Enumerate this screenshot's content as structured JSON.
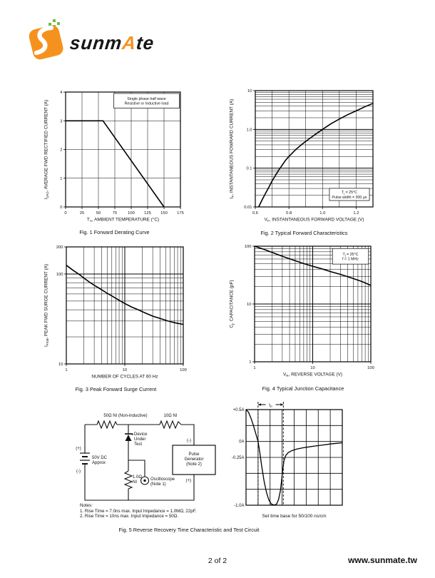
{
  "page": {
    "footer_page": "2 of 2",
    "footer_url": "www.sunmate.tw"
  },
  "logo": {
    "brand_pre": "sunm",
    "brand_accent": "A",
    "brand_post": "te"
  },
  "chart_data": [
    {
      "id": "fig1",
      "type": "line",
      "title": "Fig. 1  Forward Derating Curve",
      "xlabel": "T~A~, AMBIENT TEMPERATURE (°C)",
      "ylabel": "I~(AV)~, AVERAGE FWD RECTIFIED CURRENT (A)",
      "xscale": "linear",
      "xlim": [
        0,
        175
      ],
      "xticks": [
        [
          0,
          "0"
        ],
        [
          25,
          "25"
        ],
        [
          50,
          "50"
        ],
        [
          75,
          "75"
        ],
        [
          100,
          "100"
        ],
        [
          125,
          "125"
        ],
        [
          150,
          "150"
        ],
        [
          175,
          "175"
        ]
      ],
      "yscale": "linear",
      "ylim": [
        0,
        4
      ],
      "yticks": [
        [
          0,
          "0"
        ],
        [
          1,
          "1"
        ],
        [
          2,
          "2"
        ],
        [
          3,
          "3"
        ],
        [
          4,
          "4"
        ]
      ],
      "annotation": {
        "lines": [
          "Single phase half wave",
          "Resistive or Inductive load"
        ],
        "x0": 0.42,
        "y0": 0.012,
        "x1": 0.99,
        "y1": 0.14
      },
      "series": [
        {
          "name": "derating-curve",
          "points": [
            [
              0,
              3
            ],
            [
              57,
              3
            ],
            [
              150,
              0
            ]
          ]
        }
      ]
    },
    {
      "id": "fig2",
      "type": "line",
      "title": "Fig. 2  Typical Forward Characteristics",
      "xlabel": "V~F~, INSTANTANEOUS FORWARD VOLTAGE (V)",
      "ylabel": "I~F~, INSTANTANEOUS FOWRARD CURRENT (A)",
      "xscale": "linear",
      "xlim": [
        0.6,
        1.3
      ],
      "xticks": [
        [
          0.6,
          "0.6"
        ],
        [
          0.8,
          "0.8"
        ],
        [
          1.0,
          "1.0"
        ],
        [
          1.2,
          "1.2"
        ]
      ],
      "xgrid": [
        0.7,
        0.8,
        0.9,
        1.0,
        1.1,
        1.2
      ],
      "yscale": "log",
      "ylim": [
        0.01,
        10
      ],
      "yticks": [
        [
          0.01,
          "0.01"
        ],
        [
          0.1,
          "0.1"
        ],
        [
          1,
          "1.0"
        ],
        [
          10,
          "10"
        ]
      ],
      "annotation": {
        "lines": [
          "T~j~ = 25°C",
          "Pulse width = 300 μs"
        ],
        "x0": 0.63,
        "y0": 0.84,
        "x1": 0.97,
        "y1": 0.945
      },
      "series": [
        {
          "name": "forward-characteristic",
          "points": [
            [
              0.62,
              0.01
            ],
            [
              0.64,
              0.015
            ],
            [
              0.66,
              0.022
            ],
            [
              0.68,
              0.032
            ],
            [
              0.7,
              0.047
            ],
            [
              0.72,
              0.065
            ],
            [
              0.74,
              0.09
            ],
            [
              0.76,
              0.12
            ],
            [
              0.78,
              0.16
            ],
            [
              0.8,
              0.2
            ],
            [
              0.84,
              0.3
            ],
            [
              0.88,
              0.42
            ],
            [
              0.92,
              0.57
            ],
            [
              0.96,
              0.76
            ],
            [
              1.0,
              1.0
            ],
            [
              1.05,
              1.4
            ],
            [
              1.1,
              1.85
            ],
            [
              1.15,
              2.4
            ],
            [
              1.2,
              3.0
            ],
            [
              1.25,
              3.8
            ],
            [
              1.3,
              4.7
            ]
          ]
        }
      ]
    },
    {
      "id": "fig3",
      "type": "line",
      "title": "Fig. 3  Peak Forward Surge Current",
      "xlabel": "NUMBER OF CYCLES AT 60 Hz",
      "ylabel": "I~FSM~, PEAK FWD SURGE CURRENT (A)",
      "xscale": "log",
      "xlim": [
        1,
        100
      ],
      "xticks": [
        [
          1,
          "1"
        ],
        [
          10,
          "10"
        ],
        [
          100,
          "100"
        ]
      ],
      "yscale": "log",
      "ylim": [
        10,
        200
      ],
      "yticks": [
        [
          10,
          "10"
        ],
        [
          100,
          "100"
        ],
        [
          200,
          "200"
        ]
      ],
      "series": [
        {
          "name": "surge-current",
          "points": [
            [
              1,
              125
            ],
            [
              1.3,
              110
            ],
            [
              1.7,
              98
            ],
            [
              2,
              90
            ],
            [
              2.5,
              81
            ],
            [
              3,
              75
            ],
            [
              4,
              67
            ],
            [
              5,
              61
            ],
            [
              6,
              57
            ],
            [
              8,
              51
            ],
            [
              10,
              47
            ],
            [
              13,
              43
            ],
            [
              17,
              40
            ],
            [
              22,
              37
            ],
            [
              30,
              34
            ],
            [
              40,
              32
            ],
            [
              55,
              30
            ],
            [
              75,
              28.5
            ],
            [
              100,
              27.5
            ]
          ]
        }
      ]
    },
    {
      "id": "fig4",
      "type": "line",
      "title": "Fig. 4  Typical Junction Capacitance",
      "xlabel": "V~R~, REVERSE VOLTAGE (V)",
      "ylabel": "C~j~, CAPACITANCE (pF)",
      "xscale": "log",
      "xlim": [
        1,
        100
      ],
      "xticks": [
        [
          1,
          "1"
        ],
        [
          10,
          "10"
        ],
        [
          100,
          "100"
        ]
      ],
      "yscale": "log",
      "ylim": [
        1,
        100
      ],
      "yticks": [
        [
          1,
          "1"
        ],
        [
          10,
          "10"
        ],
        [
          100,
          "100"
        ]
      ],
      "annotation": {
        "lines": [
          "T~j~ = 25°C",
          "f = 1 MHz"
        ],
        "x0": 0.67,
        "y0": 0.02,
        "x1": 0.98,
        "y1": 0.155
      },
      "series": [
        {
          "name": "junction-capacitance",
          "points": [
            [
              1,
              100
            ],
            [
              1.5,
              87
            ],
            [
              2,
              78
            ],
            [
              3,
              67
            ],
            [
              5,
              56
            ],
            [
              7,
              50
            ],
            [
              10,
              45
            ],
            [
              15,
              40
            ],
            [
              20,
              36.5
            ],
            [
              30,
              32.5
            ],
            [
              50,
              27.5
            ],
            [
              70,
              24.5
            ],
            [
              100,
              21
            ]
          ]
        }
      ]
    },
    {
      "id": "trr",
      "type": "line",
      "title": "Set time base for 50/100 ns/cm",
      "xlim": [
        0,
        8
      ],
      "ylim": [
        -1.0,
        0.5
      ],
      "cols": 8,
      "rows": 6,
      "ylabels": [
        [
          "+0.5A",
          0.5
        ],
        [
          "0A",
          0
        ],
        [
          "-0.25A",
          -0.25
        ],
        [
          "-1.0A",
          -1.0
        ]
      ],
      "dashed_x": [
        1.0,
        3.1
      ],
      "marker": "t~rr~",
      "series": [
        {
          "name": "reverse-recovery-waveform",
          "points": [
            [
              0,
              0.5
            ],
            [
              0.2,
              0.46
            ],
            [
              0.4,
              0.37
            ],
            [
              0.6,
              0.26
            ],
            [
              0.8,
              0.13
            ],
            [
              1.0,
              0
            ],
            [
              1.15,
              -0.18
            ],
            [
              1.3,
              -0.38
            ],
            [
              1.5,
              -0.62
            ],
            [
              1.7,
              -0.8
            ],
            [
              1.9,
              -0.92
            ],
            [
              2.1,
              -0.98
            ],
            [
              2.35,
              -1.0
            ],
            [
              2.55,
              -0.98
            ],
            [
              2.7,
              -0.91
            ],
            [
              2.85,
              -0.78
            ],
            [
              2.95,
              -0.62
            ],
            [
              3.05,
              -0.44
            ],
            [
              3.15,
              -0.3
            ],
            [
              3.3,
              -0.22
            ],
            [
              3.5,
              -0.175
            ],
            [
              3.8,
              -0.145
            ],
            [
              4.2,
              -0.12
            ],
            [
              4.7,
              -0.1
            ],
            [
              5.2,
              -0.085
            ],
            [
              5.8,
              -0.07
            ],
            [
              6.4,
              -0.055
            ],
            [
              7.0,
              -0.04
            ],
            [
              7.5,
              -0.03
            ],
            [
              8,
              -0.02
            ]
          ]
        }
      ]
    }
  ],
  "fig5": {
    "caption": "Fig. 5  Reverse Recovery Time Characteristic and Test Circuit",
    "circuit": {
      "r1_label": "50Ω NI (Non-inductive)",
      "r2_label": "10Ω NI",
      "battery_plus": "(+)",
      "battery_minus": "(-)",
      "battery_label": [
        "50V DC",
        "Approx"
      ],
      "dut_label": [
        "Device",
        "Under",
        "Test"
      ],
      "r3_label": [
        "1.0Ω",
        "NI"
      ],
      "scope_label": [
        "Oscilloscope",
        "(Note 1)"
      ],
      "pg_label": [
        "Pulse",
        "Generator",
        "(Note 2)"
      ],
      "pg_minus": "(-)",
      "pg_plus": "(+)"
    },
    "notes": [
      "Notes:",
      "1. Rise Time = 7.0ns max. Input Impedance = 1.0MΩ, 22pF.",
      "2. Rise Time = 10ns max. Input Impedance = 50Ω."
    ]
  }
}
